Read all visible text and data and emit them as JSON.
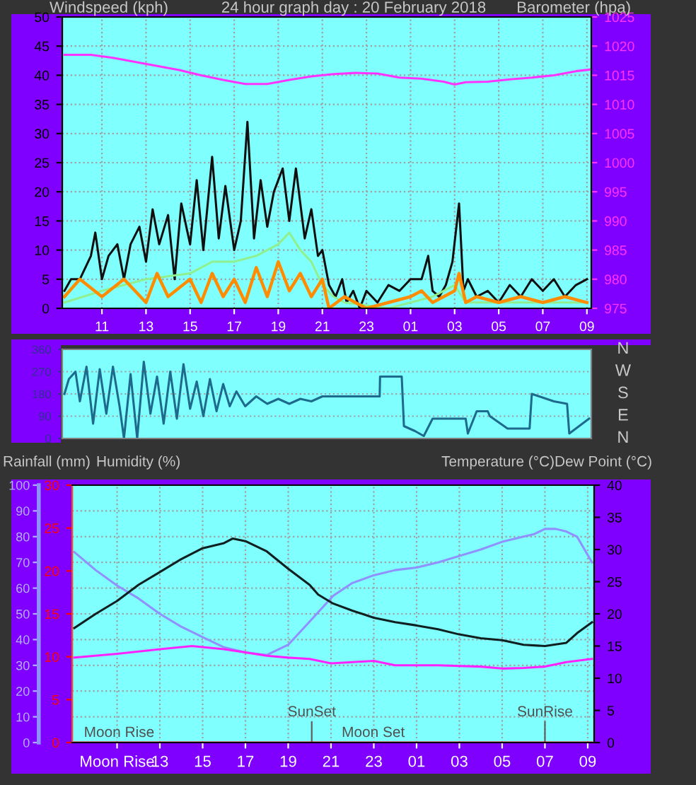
{
  "chart_data": [
    {
      "type": "line",
      "title": "24 hour graph day : 20 February 2018",
      "ylabel": "Windspeed (kph)",
      "y2label": "Barometer (hpa)",
      "xlim": [
        "2018-02-19T09:12",
        "2018-02-20T09:12"
      ],
      "xticks": [
        {
          "value": "2018-02-19T11:00",
          "label": "11"
        },
        {
          "value": "2018-02-19T13:00",
          "label": "13"
        },
        {
          "value": "2018-02-19T15:00",
          "label": "15"
        },
        {
          "value": "2018-02-19T17:00",
          "label": "17"
        },
        {
          "value": "2018-02-19T19:00",
          "label": "19"
        },
        {
          "value": "2018-02-19T21:00",
          "label": "21"
        },
        {
          "value": "2018-02-19T23:00",
          "label": "23"
        },
        {
          "value": "2018-02-20T01:00",
          "label": "01"
        },
        {
          "value": "2018-02-20T03:00",
          "label": "03"
        },
        {
          "value": "2018-02-20T05:00",
          "label": "05"
        },
        {
          "value": "2018-02-20T07:00",
          "label": "07"
        },
        {
          "value": "2018-02-20T09:00",
          "label": "09"
        }
      ],
      "ylim": [
        0,
        50
      ],
      "yticks": [
        0,
        5,
        10,
        15,
        20,
        25,
        30,
        35,
        40,
        45,
        50
      ],
      "y2lim": [
        975,
        1025
      ],
      "y2ticks": [
        975,
        980,
        985,
        990,
        995,
        1000,
        1005,
        1010,
        1015,
        1020,
        1025
      ],
      "grid": true,
      "series": [
        {
          "color": "#101010",
          "x": [
            "2018-02-19T09:18",
            "2018-02-19T09:36",
            "2018-02-19T10:00",
            "2018-02-19T10:30",
            "2018-02-19T10:42",
            "2018-02-19T11:00",
            "2018-02-19T11:18",
            "2018-02-19T11:42",
            "2018-02-19T12:00",
            "2018-02-19T12:18",
            "2018-02-19T12:42",
            "2018-02-19T13:00",
            "2018-02-19T13:18",
            "2018-02-19T13:36",
            "2018-02-19T14:00",
            "2018-02-19T14:18",
            "2018-02-19T14:36",
            "2018-02-19T15:00",
            "2018-02-19T15:18",
            "2018-02-19T15:36",
            "2018-02-19T16:00",
            "2018-02-19T16:18",
            "2018-02-19T16:36",
            "2018-02-19T17:00",
            "2018-02-19T17:18",
            "2018-02-19T17:36",
            "2018-02-19T17:54",
            "2018-02-19T18:12",
            "2018-02-19T18:30",
            "2018-02-19T18:48",
            "2018-02-19T19:12",
            "2018-02-19T19:30",
            "2018-02-19T19:48",
            "2018-02-19T20:12",
            "2018-02-19T20:30",
            "2018-02-19T20:48",
            "2018-02-19T21:00",
            "2018-02-19T21:18",
            "2018-02-19T21:36",
            "2018-02-19T21:54",
            "2018-02-19T22:06",
            "2018-02-19T22:24",
            "2018-02-19T22:42",
            "2018-02-19T23:00",
            "2018-02-19T23:30",
            "2018-02-20T00:00",
            "2018-02-20T00:30",
            "2018-02-20T01:00",
            "2018-02-20T01:30",
            "2018-02-20T01:48",
            "2018-02-20T02:00",
            "2018-02-20T02:18",
            "2018-02-20T02:36",
            "2018-02-20T02:54",
            "2018-02-20T03:12",
            "2018-02-20T03:24",
            "2018-02-20T03:36",
            "2018-02-20T04:00",
            "2018-02-20T04:30",
            "2018-02-20T05:00",
            "2018-02-20T05:30",
            "2018-02-20T06:00",
            "2018-02-20T06:30",
            "2018-02-20T07:00",
            "2018-02-20T07:30",
            "2018-02-20T08:00",
            "2018-02-20T08:30",
            "2018-02-20T09:00"
          ],
          "values": [
            3,
            5,
            5,
            9,
            13,
            5,
            9,
            11,
            5,
            11,
            14,
            8,
            17,
            11,
            16,
            5,
            18,
            11,
            22,
            10,
            26,
            12,
            21,
            10,
            15,
            32,
            12,
            22,
            14,
            20,
            24,
            15,
            24,
            12,
            17,
            9,
            10,
            4,
            2,
            5,
            1,
            3,
            0,
            3,
            1,
            4,
            3,
            5,
            5,
            9,
            3,
            2,
            4,
            8,
            18,
            3,
            5,
            2,
            3,
            1,
            4,
            2,
            5,
            3,
            5,
            2,
            4,
            5
          ]
        },
        {
          "color": "#90f090",
          "x": [
            "2018-02-19T09:18",
            "2018-02-19T11:00",
            "2018-02-19T13:00",
            "2018-02-19T15:00",
            "2018-02-19T16:00",
            "2018-02-19T17:00",
            "2018-02-19T18:00",
            "2018-02-19T19:00",
            "2018-02-19T19:30",
            "2018-02-19T20:00",
            "2018-02-19T20:30",
            "2018-02-19T21:00",
            "2018-02-19T21:30",
            "2018-02-19T22:00",
            "2018-02-20T00:00",
            "2018-02-20T02:00",
            "2018-02-20T03:00",
            "2018-02-20T03:30",
            "2018-02-20T06:00",
            "2018-02-20T09:00"
          ],
          "values": [
            1,
            3,
            5,
            6,
            8,
            8,
            9,
            11,
            13,
            10,
            8,
            4,
            2,
            1,
            0,
            2,
            4,
            1,
            1,
            1
          ]
        },
        {
          "color": "#ff8c00",
          "x": [
            "2018-02-19T09:18",
            "2018-02-19T10:00",
            "2018-02-19T11:00",
            "2018-02-19T12:00",
            "2018-02-19T13:00",
            "2018-02-19T13:30",
            "2018-02-19T14:00",
            "2018-02-19T15:00",
            "2018-02-19T15:30",
            "2018-02-19T16:00",
            "2018-02-19T16:30",
            "2018-02-19T17:00",
            "2018-02-19T17:30",
            "2018-02-19T18:00",
            "2018-02-19T18:30",
            "2018-02-19T19:00",
            "2018-02-19T19:30",
            "2018-02-19T20:00",
            "2018-02-19T20:30",
            "2018-02-19T21:00",
            "2018-02-19T21:18",
            "2018-02-19T22:00",
            "2018-02-19T23:00",
            "2018-02-20T00:00",
            "2018-02-20T01:00",
            "2018-02-20T01:30",
            "2018-02-20T02:00",
            "2018-02-20T03:00",
            "2018-02-20T03:12",
            "2018-02-20T03:30",
            "2018-02-20T04:00",
            "2018-02-20T05:00",
            "2018-02-20T06:00",
            "2018-02-20T07:00",
            "2018-02-20T08:00",
            "2018-02-20T09:00"
          ],
          "values": [
            2,
            5,
            2,
            5,
            1,
            6,
            2,
            5,
            1,
            6,
            2,
            5,
            1,
            7,
            2,
            8,
            3,
            6,
            2,
            5,
            0,
            2,
            0,
            1,
            2,
            3,
            1,
            3,
            6,
            1,
            2,
            1,
            2,
            1,
            2,
            1
          ]
        },
        {
          "color": "#ff33ff",
          "axis": "y2",
          "x": [
            "2018-02-19T09:18",
            "2018-02-19T10:30",
            "2018-02-19T11:30",
            "2018-02-19T12:30",
            "2018-02-19T13:30",
            "2018-02-19T14:30",
            "2018-02-19T15:30",
            "2018-02-19T16:30",
            "2018-02-19T17:30",
            "2018-02-19T18:30",
            "2018-02-19T19:30",
            "2018-02-19T20:30",
            "2018-02-19T21:30",
            "2018-02-19T22:30",
            "2018-02-19T23:30",
            "2018-02-20T00:30",
            "2018-02-20T01:30",
            "2018-02-20T02:30",
            "2018-02-20T03:00",
            "2018-02-20T03:30",
            "2018-02-20T04:30",
            "2018-02-20T05:30",
            "2018-02-20T06:30",
            "2018-02-20T07:30",
            "2018-02-20T08:30",
            "2018-02-20T09:12"
          ],
          "values": [
            1018.5,
            1018.5,
            1018,
            1017.3,
            1016.6,
            1015.9,
            1015,
            1014.2,
            1013.5,
            1013.5,
            1014.2,
            1014.8,
            1015.2,
            1015.4,
            1015.3,
            1014.6,
            1014.4,
            1013.9,
            1013.4,
            1013.8,
            1013.9,
            1014.3,
            1014.6,
            1015,
            1015.7,
            1016
          ]
        }
      ]
    },
    {
      "type": "line",
      "xlim": [
        "2018-02-19T09:12",
        "2018-02-20T09:12"
      ],
      "ylim": [
        0,
        360
      ],
      "yticks": [
        0,
        90,
        180,
        270,
        360
      ],
      "annotations": [
        "N",
        "W",
        "S",
        "E",
        "N"
      ],
      "grid": "y",
      "tick_labels": "y",
      "series": [
        {
          "color": "#1e6a8c",
          "x": [
            "2018-02-19T09:18",
            "2018-02-19T09:30",
            "2018-02-19T09:48",
            "2018-02-19T10:00",
            "2018-02-19T10:18",
            "2018-02-19T10:36",
            "2018-02-19T10:54",
            "2018-02-19T11:12",
            "2018-02-19T11:30",
            "2018-02-19T11:48",
            "2018-02-19T12:00",
            "2018-02-19T12:18",
            "2018-02-19T12:36",
            "2018-02-19T12:54",
            "2018-02-19T13:12",
            "2018-02-19T13:30",
            "2018-02-19T13:48",
            "2018-02-19T14:06",
            "2018-02-19T14:24",
            "2018-02-19T14:42",
            "2018-02-19T15:00",
            "2018-02-19T15:18",
            "2018-02-19T15:36",
            "2018-02-19T15:54",
            "2018-02-19T16:12",
            "2018-02-19T16:30",
            "2018-02-19T16:48",
            "2018-02-19T17:06",
            "2018-02-19T17:30",
            "2018-02-19T18:00",
            "2018-02-19T18:30",
            "2018-02-19T19:00",
            "2018-02-19T19:30",
            "2018-02-19T20:00",
            "2018-02-19T20:30",
            "2018-02-19T21:00",
            "2018-02-19T21:30",
            "2018-02-19T23:36",
            "2018-02-19T23:37",
            "2018-02-20T00:36",
            "2018-02-20T00:42",
            "2018-02-20T01:12",
            "2018-02-20T01:36",
            "2018-02-20T02:00",
            "2018-02-20T03:30",
            "2018-02-20T03:36",
            "2018-02-20T04:00",
            "2018-02-20T04:30",
            "2018-02-20T04:36",
            "2018-02-20T05:24",
            "2018-02-20T06:24",
            "2018-02-20T06:30",
            "2018-02-20T07:30",
            "2018-02-20T08:06",
            "2018-02-20T08:12",
            "2018-02-20T09:06"
          ],
          "values": [
            180,
            240,
            270,
            150,
            290,
            60,
            280,
            100,
            290,
            130,
            0,
            260,
            0,
            310,
            100,
            250,
            60,
            270,
            80,
            300,
            120,
            230,
            90,
            240,
            110,
            220,
            130,
            190,
            130,
            170,
            140,
            160,
            140,
            160,
            150,
            170,
            170,
            170,
            250,
            250,
            50,
            30,
            10,
            80,
            80,
            20,
            110,
            110,
            90,
            40,
            40,
            180,
            150,
            140,
            20,
            80
          ]
        }
      ]
    },
    {
      "type": "line",
      "ylabel": "Humidity (%)",
      "y3label": "Rainfall (mm)",
      "y2label": "Temperature (°C)Dew Point (°C)",
      "xlim": [
        "2018-02-19T08:54",
        "2018-02-20T09:18"
      ],
      "xticks": [
        {
          "value": "2018-02-19T11:00",
          "label": "Moon Rise"
        },
        {
          "value": "2018-02-19T13:00",
          "label": "13"
        },
        {
          "value": "2018-02-19T15:00",
          "label": "15"
        },
        {
          "value": "2018-02-19T17:00",
          "label": "17"
        },
        {
          "value": "2018-02-19T19:00",
          "label": "19"
        },
        {
          "value": "2018-02-19T21:00",
          "label": "21"
        },
        {
          "value": "2018-02-19T23:00",
          "label": "23"
        },
        {
          "value": "2018-02-20T01:00",
          "label": "01"
        },
        {
          "value": "2018-02-20T03:00",
          "label": "03"
        },
        {
          "value": "2018-02-20T05:00",
          "label": "05"
        },
        {
          "value": "2018-02-20T07:00",
          "label": "07"
        },
        {
          "value": "2018-02-20T09:00",
          "label": "09"
        }
      ],
      "ylim": [
        0,
        100
      ],
      "yticks": [
        0,
        10,
        20,
        30,
        40,
        50,
        60,
        70,
        80,
        90,
        100
      ],
      "y2lim": [
        0,
        40
      ],
      "y2ticks": [
        0,
        5,
        10,
        15,
        20,
        25,
        30,
        35,
        40
      ],
      "y3lim": [
        0,
        30
      ],
      "y3ticks": [
        0,
        5,
        10,
        15,
        20,
        25,
        30
      ],
      "grid": true,
      "ref_lines": [
        {
          "axis": "x",
          "value": "2018-02-19T20:06",
          "label": "SunSet",
          "color": "#606060"
        },
        {
          "axis": "x",
          "value": "2018-02-20T07:00",
          "label": "SunRise",
          "color": "#606060"
        }
      ],
      "annotations": [
        {
          "text": "Moon Rise",
          "x": "2018-02-19T09:27",
          "y": 1
        },
        {
          "text": "Moon Set",
          "x": "2018-02-19T21:30",
          "y": 1
        }
      ],
      "series": [
        {
          "color": "#9090ff",
          "x": [
            "2018-02-19T09:00",
            "2018-02-19T10:00",
            "2018-02-19T11:00",
            "2018-02-19T12:00",
            "2018-02-19T13:00",
            "2018-02-19T14:00",
            "2018-02-19T15:00",
            "2018-02-19T16:00",
            "2018-02-19T17:00",
            "2018-02-19T18:00",
            "2018-02-19T19:00",
            "2018-02-19T20:00",
            "2018-02-19T21:06",
            "2018-02-19T22:00",
            "2018-02-19T23:00",
            "2018-02-20T00:00",
            "2018-02-20T01:00",
            "2018-02-20T02:00",
            "2018-02-20T03:00",
            "2018-02-20T04:00",
            "2018-02-20T05:00",
            "2018-02-20T06:00",
            "2018-02-20T06:30",
            "2018-02-20T07:00",
            "2018-02-20T07:30",
            "2018-02-20T08:00",
            "2018-02-20T08:30",
            "2018-02-20T09:12"
          ],
          "values": [
            74,
            67,
            61,
            56,
            50,
            45,
            41,
            37,
            35,
            34,
            38,
            47,
            57,
            62,
            65,
            67,
            68,
            70,
            72.5,
            75,
            78,
            80,
            81,
            83,
            83,
            82,
            80,
            70
          ]
        },
        {
          "color": "#102020",
          "axis": "y2",
          "x": [
            "2018-02-19T09:00",
            "2018-02-19T10:00",
            "2018-02-19T11:00",
            "2018-02-19T12:00",
            "2018-02-19T13:00",
            "2018-02-19T14:00",
            "2018-02-19T15:00",
            "2018-02-19T16:00",
            "2018-02-19T16:24",
            "2018-02-19T17:00",
            "2018-02-19T18:00",
            "2018-02-19T19:00",
            "2018-02-19T20:00",
            "2018-02-19T20:24",
            "2018-02-19T21:06",
            "2018-02-19T22:00",
            "2018-02-19T23:00",
            "2018-02-20T00:00",
            "2018-02-20T01:00",
            "2018-02-20T02:00",
            "2018-02-20T03:00",
            "2018-02-20T04:00",
            "2018-02-20T05:00",
            "2018-02-20T06:00",
            "2018-02-20T07:00",
            "2018-02-20T08:00",
            "2018-02-20T08:30",
            "2018-02-20T09:12"
          ],
          "values": [
            17.8,
            20,
            22,
            24.5,
            26.5,
            28.5,
            30.2,
            31,
            31.7,
            31.3,
            29.7,
            27,
            24.5,
            23,
            21.6,
            20.5,
            19.4,
            18.7,
            18.2,
            17.6,
            16.8,
            16.2,
            15.9,
            15.2,
            15,
            15.5,
            17,
            18.7
          ]
        },
        {
          "color": "#ff22ff",
          "axis": "y2",
          "x": [
            "2018-02-19T09:00",
            "2018-02-19T11:00",
            "2018-02-19T13:00",
            "2018-02-19T14:30",
            "2018-02-19T16:00",
            "2018-02-19T17:00",
            "2018-02-19T18:00",
            "2018-02-19T19:00",
            "2018-02-19T20:00",
            "2018-02-19T21:00",
            "2018-02-19T22:00",
            "2018-02-19T23:00",
            "2018-02-20T00:00",
            "2018-02-20T02:00",
            "2018-02-20T04:00",
            "2018-02-20T05:00",
            "2018-02-20T06:00",
            "2018-02-20T07:00",
            "2018-02-20T08:00",
            "2018-02-20T09:12"
          ],
          "values": [
            13.2,
            13.8,
            14.5,
            15,
            14.5,
            14,
            13.5,
            13.2,
            13,
            12.3,
            12.5,
            12.7,
            12,
            12,
            11.8,
            11.5,
            11.6,
            11.8,
            12.5,
            13
          ]
        },
        {
          "color": "#ff0000",
          "axis": "y3",
          "x": [
            "2018-02-19T09:00",
            "2018-02-20T09:12"
          ],
          "values": [
            0,
            0
          ]
        }
      ]
    }
  ]
}
